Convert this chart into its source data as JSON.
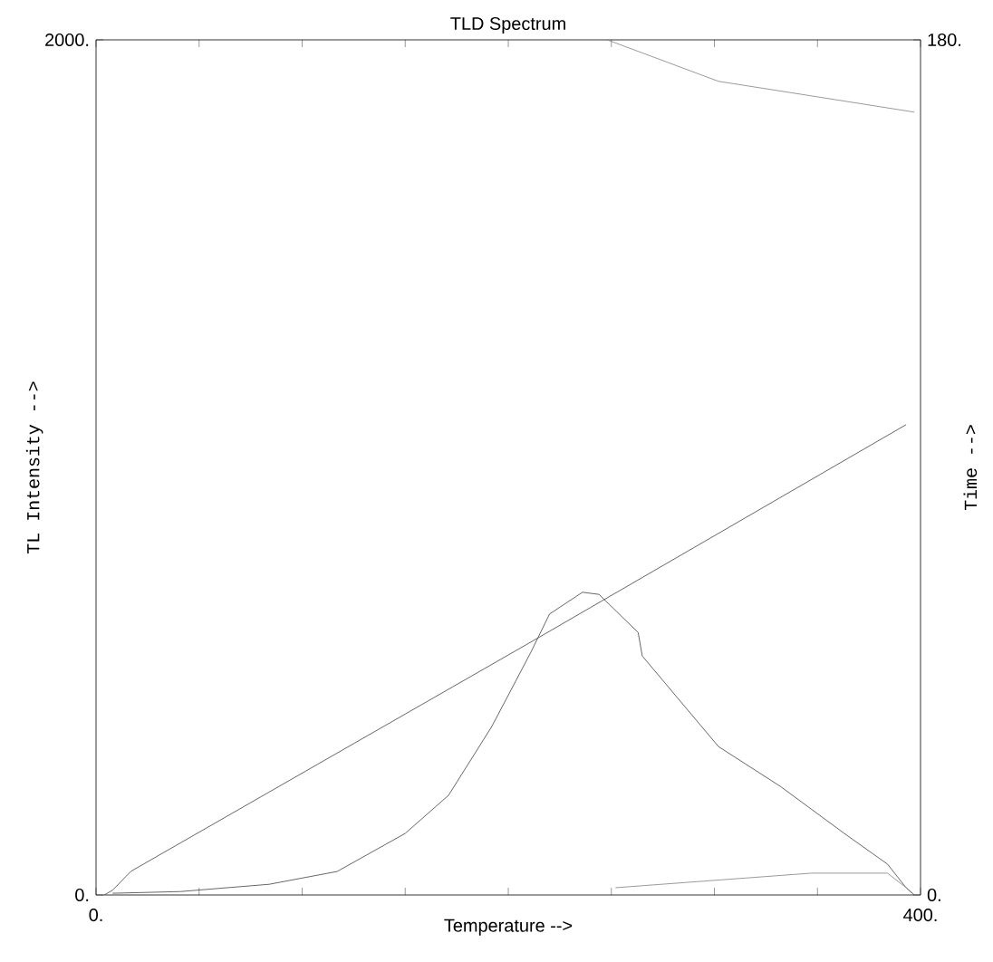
{
  "chart_data": {
    "type": "line",
    "title": "TLD Spectrum",
    "xlabel": "Temperature -->",
    "ylabel": "TL Intensity -->",
    "y2label": "Time -->",
    "x": [
      8,
      41,
      84,
      117,
      150,
      171,
      192,
      211,
      220,
      236,
      244,
      263,
      265,
      302,
      332,
      363,
      384,
      393,
      397
    ],
    "series": [
      {
        "color": "#404040",
        "values": [
          4,
          8,
          25,
          55,
          144,
          233,
          394,
          568,
          657,
          708,
          703,
          614,
          559,
          347,
          254,
          144,
          72,
          17,
          0
        ]
      },
      {
        "color": "#404040",
        "axis": "y2",
        "x": [
          4,
          8,
          17,
          214,
          393
        ],
        "values": [
          0,
          1,
          5,
          54,
          99
        ]
      },
      {
        "color": "#808080",
        "x": [
          248,
          302,
          347,
          397
        ],
        "values": [
          2000,
          1903,
          1869,
          1831
        ]
      },
      {
        "color": "#808080",
        "x": [
          252,
          347,
          384,
          393,
          397
        ],
        "values": [
          17,
          51,
          51,
          17,
          0
        ]
      }
    ],
    "xlim": [
      0,
      400
    ],
    "xticks": [
      {
        "value": 0,
        "label": "0."
      },
      {
        "value": 50,
        "label": null
      },
      {
        "value": 100,
        "label": null
      },
      {
        "value": 150,
        "label": null
      },
      {
        "value": 200,
        "label": null
      },
      {
        "value": 250,
        "label": null
      },
      {
        "value": 300,
        "label": null
      },
      {
        "value": 350,
        "label": null
      },
      {
        "value": 400,
        "label": "400."
      }
    ],
    "ylim": [
      0,
      2000
    ],
    "yticks": [
      {
        "value": 0,
        "label": "0."
      },
      {
        "value": 2000,
        "label": "2000."
      }
    ],
    "y2lim": [
      0,
      180
    ],
    "y2ticks": [
      {
        "value": 0,
        "label": "0."
      },
      {
        "value": 180,
        "label": "180."
      }
    ],
    "grid": false,
    "marker": "none",
    "line_style": "solid"
  }
}
